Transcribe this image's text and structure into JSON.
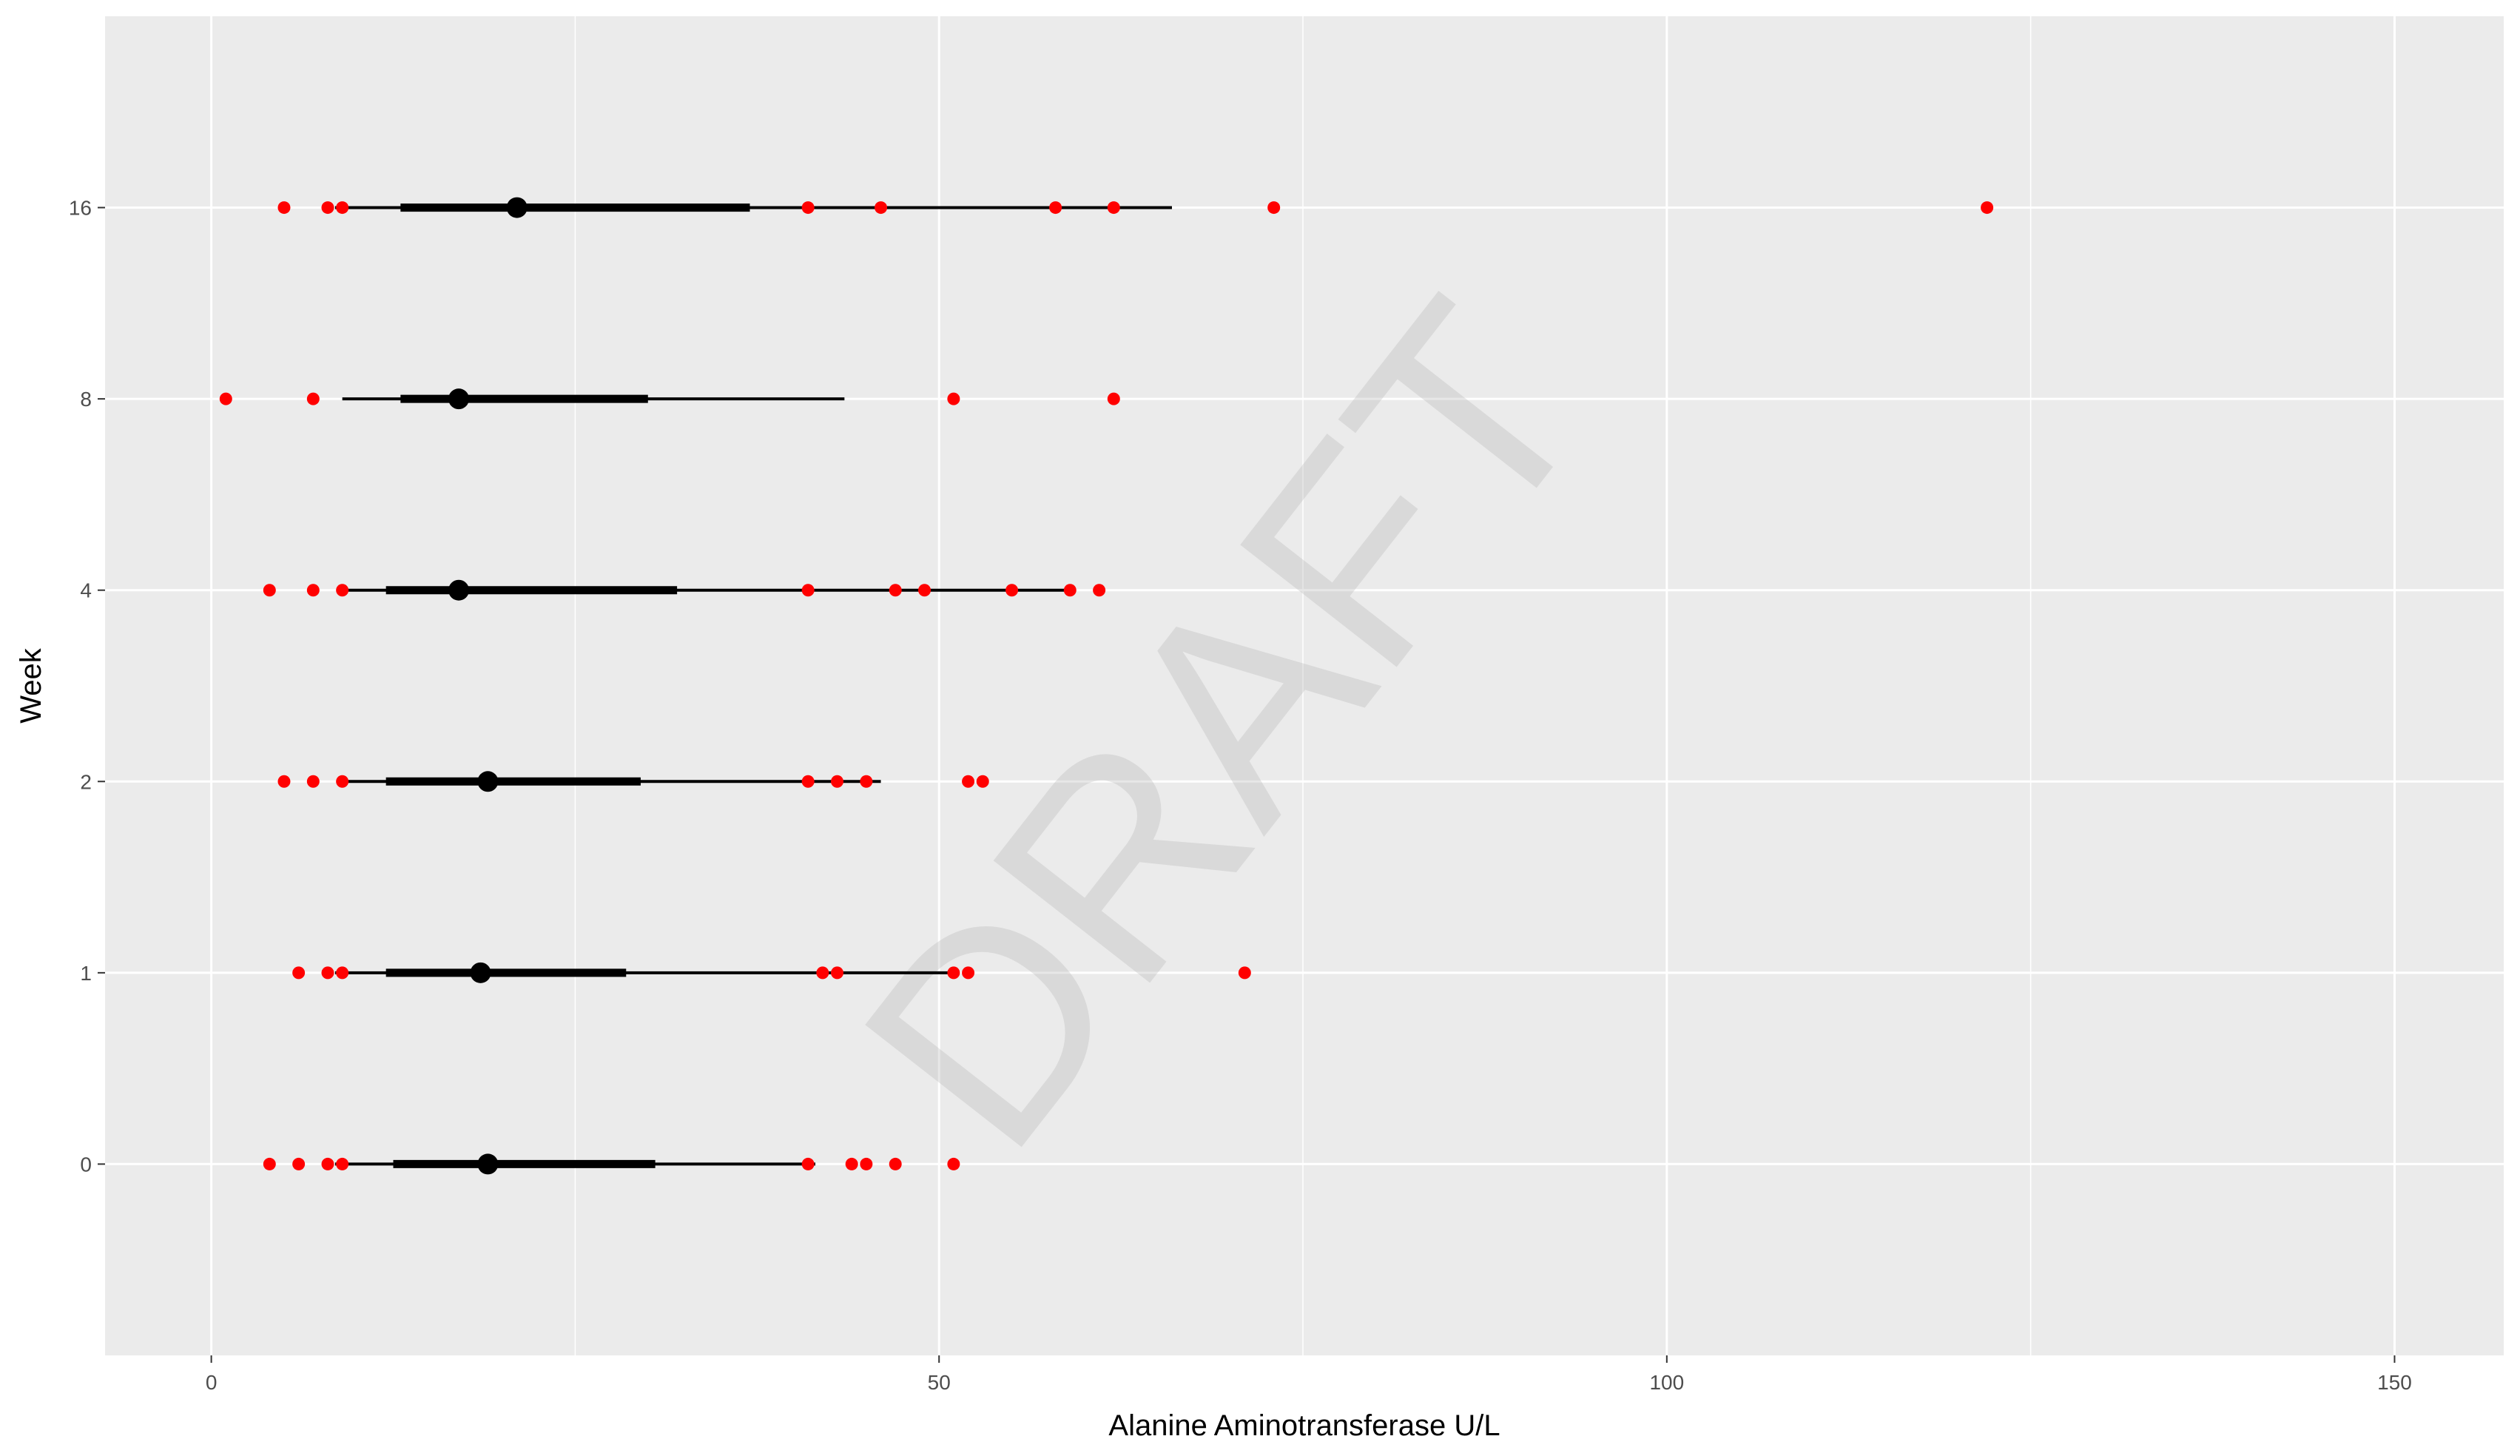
{
  "chart_data": {
    "type": "box",
    "orientation": "horizontal",
    "xlabel": "Alanine Aminotransferase U/L",
    "ylabel": "Week",
    "xlim": [
      -7.3,
      157.5
    ],
    "x_ticks": [
      0,
      50,
      100,
      150
    ],
    "grid": true,
    "legend": "none",
    "watermark": "DRAFT",
    "categories": [
      "0",
      "1",
      "2",
      "4",
      "8",
      "16"
    ],
    "series": [
      {
        "week": "0",
        "whisker_low": 8.5,
        "q1": 12.5,
        "median": 19,
        "q3": 30.5,
        "whisker_high": 41.5,
        "outliers": [
          4,
          6,
          8,
          9,
          41,
          44,
          45,
          47,
          51
        ]
      },
      {
        "week": "1",
        "whisker_low": 8.5,
        "q1": 12,
        "median": 18.5,
        "q3": 28.5,
        "whisker_high": 51,
        "outliers": [
          6,
          8,
          9,
          42,
          43,
          51,
          52,
          71
        ]
      },
      {
        "week": "2",
        "whisker_low": 9,
        "q1": 12,
        "median": 19,
        "q3": 29.5,
        "whisker_high": 46,
        "outliers": [
          5,
          7,
          9,
          41,
          43,
          45,
          52,
          53
        ]
      },
      {
        "week": "4",
        "whisker_low": 9,
        "q1": 12,
        "median": 17,
        "q3": 32,
        "whisker_high": 59,
        "outliers": [
          4,
          7,
          9,
          41,
          47,
          49,
          55,
          59,
          61
        ]
      },
      {
        "week": "8",
        "whisker_low": 9,
        "q1": 13,
        "median": 17,
        "q3": 30,
        "whisker_high": 43.5,
        "outliers": [
          1,
          7,
          51,
          62
        ]
      },
      {
        "week": "16",
        "whisker_low": 8.5,
        "q1": 13,
        "median": 21,
        "q3": 37,
        "whisker_high": 66,
        "outliers": [
          5,
          8,
          9,
          41,
          46,
          58,
          62,
          73,
          122
        ]
      }
    ],
    "colors": {
      "panel": "#ebebeb",
      "grid": "#ffffff",
      "box": "#000000",
      "outlier": "#ff0000"
    }
  }
}
